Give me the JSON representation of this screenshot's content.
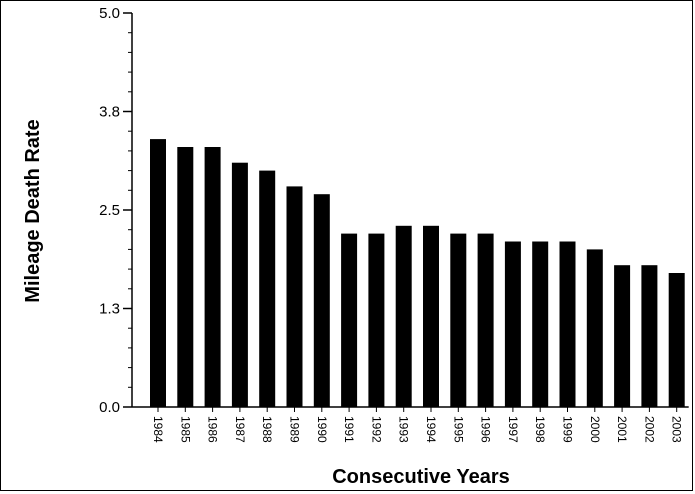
{
  "chart_data": {
    "type": "bar",
    "title": "",
    "xlabel": "Consecutive Years",
    "ylabel": "Mileage Death Rate",
    "categories": [
      "1984",
      "1985",
      "1986",
      "1987",
      "1988",
      "1989",
      "1990",
      "1991",
      "1992",
      "1993",
      "1994",
      "1995",
      "1996",
      "1997",
      "1998",
      "1999",
      "2000",
      "2001",
      "2002",
      "2003"
    ],
    "values": [
      3.4,
      3.3,
      3.3,
      3.1,
      3.0,
      2.8,
      2.7,
      2.2,
      2.2,
      2.3,
      2.3,
      2.2,
      2.2,
      2.1,
      2.1,
      2.1,
      2.0,
      1.8,
      1.8,
      1.7
    ],
    "ylim": [
      0,
      5.0
    ],
    "yticks": [
      "0.0",
      "1.3",
      "2.5",
      "3.8",
      "5.0"
    ],
    "ytick_values": [
      0,
      1.25,
      2.5,
      3.75,
      5.0
    ],
    "grid": false,
    "bar_color": "#000000"
  }
}
